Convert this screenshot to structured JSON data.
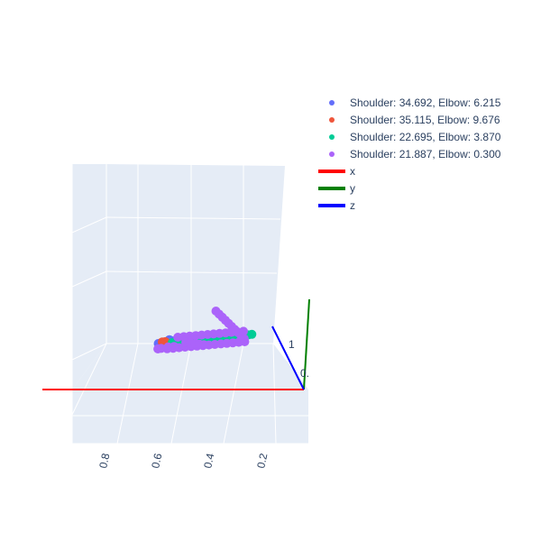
{
  "chart_data": {
    "type": "scatter",
    "subtype": "3d-scatter",
    "title": "",
    "grid": true,
    "legend_position": "top-right",
    "series": [
      {
        "name": "Shoulder: 34.692, Elbow: 6.215",
        "color": "#636efa",
        "points": [
          [
            0.49,
            0.26,
            0.38
          ],
          [
            0.48,
            0.28,
            0.35
          ],
          [
            0.47,
            0.3,
            0.32
          ],
          [
            0.47,
            0.32,
            0.29
          ],
          [
            0.46,
            0.34,
            0.27
          ],
          [
            0.45,
            0.36,
            0.25
          ],
          [
            0.46,
            0.38,
            0.22
          ],
          [
            0.48,
            0.4,
            0.2
          ],
          [
            0.5,
            0.42,
            0.19
          ],
          [
            0.48,
            0.22,
            0.41
          ],
          [
            0.47,
            0.2,
            0.44
          ],
          [
            0.48,
            0.18,
            0.47
          ],
          [
            0.5,
            0.16,
            0.5
          ],
          [
            0.44,
            0.3,
            0.3
          ],
          [
            0.43,
            0.32,
            0.28
          ],
          [
            0.42,
            0.34,
            0.26
          ],
          [
            0.41,
            0.3,
            0.32
          ],
          [
            0.4,
            0.26,
            0.36
          ],
          [
            0.39,
            0.24,
            0.38
          ],
          [
            0.36,
            0.2,
            0.5
          ],
          [
            0.35,
            0.18,
            0.53
          ],
          [
            0.34,
            0.16,
            0.55
          ],
          [
            0.52,
            0.3,
            0.3
          ],
          [
            0.51,
            0.32,
            0.28
          ],
          [
            0.5,
            0.34,
            0.26
          ]
        ]
      },
      {
        "name": "Shoulder: 35.115, Elbow: 9.676",
        "color": "#ef553b",
        "points": [
          [
            0.5,
            0.3,
            0.3
          ],
          [
            0.49,
            0.31,
            0.29
          ],
          [
            0.46,
            0.4,
            0.24
          ],
          [
            0.45,
            0.41,
            0.23
          ],
          [
            0.44,
            0.28,
            0.34
          ],
          [
            0.43,
            0.29,
            0.33
          ],
          [
            0.33,
            0.22,
            0.46
          ],
          [
            0.32,
            0.23,
            0.45
          ],
          [
            0.31,
            0.24,
            0.44
          ],
          [
            0.52,
            0.36,
            0.24
          ],
          [
            0.51,
            0.37,
            0.23
          ]
        ]
      },
      {
        "name": "Shoulder: 22.695, Elbow: 3.870",
        "color": "#00cc96",
        "points": [
          [
            0.46,
            0.24,
            0.4
          ],
          [
            0.45,
            0.26,
            0.38
          ],
          [
            0.44,
            0.28,
            0.36
          ],
          [
            0.43,
            0.3,
            0.34
          ],
          [
            0.42,
            0.32,
            0.32
          ],
          [
            0.41,
            0.34,
            0.3
          ],
          [
            0.4,
            0.36,
            0.28
          ],
          [
            0.39,
            0.38,
            0.26
          ],
          [
            0.38,
            0.4,
            0.24
          ],
          [
            0.37,
            0.42,
            0.22
          ],
          [
            0.32,
            0.24,
            0.42
          ],
          [
            0.31,
            0.26,
            0.4
          ],
          [
            0.3,
            0.28,
            0.38
          ],
          [
            0.29,
            0.3,
            0.36
          ],
          [
            0.28,
            0.32,
            0.34
          ],
          [
            0.27,
            0.34,
            0.32
          ],
          [
            0.26,
            0.36,
            0.3
          ],
          [
            0.25,
            0.38,
            0.28
          ],
          [
            0.24,
            0.4,
            0.26
          ],
          [
            0.23,
            0.42,
            0.24
          ],
          [
            0.22,
            0.44,
            0.22
          ],
          [
            0.21,
            0.46,
            0.2
          ],
          [
            0.2,
            0.48,
            0.18
          ],
          [
            0.19,
            0.5,
            0.16
          ],
          [
            0.36,
            0.3,
            0.38
          ],
          [
            0.35,
            0.28,
            0.4
          ],
          [
            0.34,
            0.26,
            0.42
          ],
          [
            0.38,
            0.32,
            0.36
          ]
        ]
      },
      {
        "name": "Shoulder: 21.887, Elbow: 0.300",
        "color": "#ab63fa",
        "points": [
          [
            0.5,
            0.1,
            0.5
          ],
          [
            0.49,
            0.12,
            0.48
          ],
          [
            0.47,
            0.13,
            0.46
          ],
          [
            0.45,
            0.15,
            0.44
          ],
          [
            0.43,
            0.17,
            0.42
          ],
          [
            0.41,
            0.19,
            0.4
          ],
          [
            0.39,
            0.21,
            0.38
          ],
          [
            0.37,
            0.23,
            0.36
          ],
          [
            0.35,
            0.25,
            0.34
          ],
          [
            0.33,
            0.27,
            0.32
          ],
          [
            0.31,
            0.29,
            0.3
          ],
          [
            0.29,
            0.31,
            0.28
          ],
          [
            0.27,
            0.33,
            0.26
          ],
          [
            0.25,
            0.35,
            0.24
          ],
          [
            0.23,
            0.37,
            0.22
          ],
          [
            0.21,
            0.39,
            0.2
          ],
          [
            0.21,
            0.41,
            0.22
          ],
          [
            0.22,
            0.43,
            0.24
          ],
          [
            0.23,
            0.45,
            0.26
          ],
          [
            0.24,
            0.47,
            0.28
          ],
          [
            0.25,
            0.49,
            0.3
          ],
          [
            0.26,
            0.51,
            0.32
          ],
          [
            0.27,
            0.53,
            0.34
          ],
          [
            0.28,
            0.55,
            0.36
          ],
          [
            0.29,
            0.57,
            0.38
          ],
          [
            0.3,
            0.59,
            0.4
          ],
          [
            0.44,
            0.3,
            0.4
          ],
          [
            0.42,
            0.32,
            0.38
          ],
          [
            0.4,
            0.34,
            0.36
          ],
          [
            0.38,
            0.36,
            0.34
          ],
          [
            0.36,
            0.38,
            0.32
          ],
          [
            0.34,
            0.4,
            0.3
          ],
          [
            0.32,
            0.42,
            0.28
          ],
          [
            0.3,
            0.44,
            0.26
          ],
          [
            0.28,
            0.46,
            0.24
          ],
          [
            0.26,
            0.48,
            0.22
          ],
          [
            0.24,
            0.5,
            0.2
          ],
          [
            0.22,
            0.52,
            0.18
          ],
          [
            0.48,
            0.22,
            0.36
          ],
          [
            0.46,
            0.24,
            0.34
          ],
          [
            0.4,
            0.2,
            0.46
          ],
          [
            0.38,
            0.18,
            0.48
          ],
          [
            0.36,
            0.16,
            0.5
          ],
          [
            0.34,
            0.14,
            0.52
          ],
          [
            0.32,
            0.12,
            0.54
          ]
        ]
      },
      {
        "name": "x",
        "color": "#ff0000",
        "line": true,
        "points": [
          [
            0.0,
            0.0,
            0.0
          ],
          [
            1.0,
            0.0,
            0.0
          ]
        ]
      },
      {
        "name": "y",
        "color": "#008000",
        "line": true,
        "points": [
          [
            0.0,
            0.0,
            0.0
          ],
          [
            0.0,
            1.0,
            0.0
          ]
        ]
      },
      {
        "name": "z",
        "color": "#0000ff",
        "line": true,
        "points": [
          [
            0.0,
            0.0,
            0.0
          ],
          [
            0.0,
            0.0,
            1.0
          ]
        ]
      }
    ],
    "x_ticks": [
      "0.8",
      "0.6",
      "0.4",
      "0.2"
    ],
    "z_ticks": [
      "1"
    ],
    "y_ticks": [
      "0."
    ]
  }
}
